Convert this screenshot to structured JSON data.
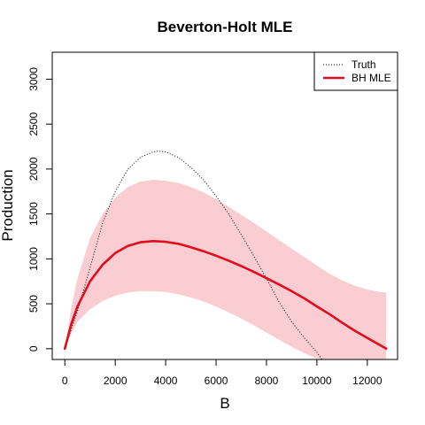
{
  "chart_data": {
    "type": "line",
    "title": "Beverton-Holt MLE",
    "xlabel": "B",
    "ylabel": "Production",
    "xlim": [
      -500,
      13200
    ],
    "ylim": [
      -120,
      3300
    ],
    "xticks": [
      0,
      2000,
      4000,
      6000,
      8000,
      10000,
      12000
    ],
    "yticks": [
      0,
      500,
      1000,
      1500,
      2000,
      2500,
      3000
    ],
    "grid": false,
    "legend_position": "top-right",
    "series": [
      {
        "name": "Truth",
        "style": "dotted",
        "color": "#000000",
        "x": [
          0,
          500,
          1000,
          1500,
          2000,
          2500,
          3000,
          3500,
          3700,
          4000,
          4500,
          5000,
          5500,
          6000,
          6500,
          7000,
          7500,
          8000,
          8500,
          9000,
          9500,
          10000,
          10200
        ],
        "y": [
          0,
          420,
          900,
          1400,
          1750,
          2000,
          2130,
          2190,
          2200,
          2190,
          2130,
          2020,
          1880,
          1700,
          1500,
          1270,
          1030,
          780,
          520,
          300,
          120,
          -40,
          -120
        ]
      },
      {
        "name": "BH MLE",
        "style": "solid",
        "color": "#e00d1d",
        "x": [
          0,
          250,
          500,
          1000,
          1500,
          2000,
          2500,
          3000,
          3500,
          4000,
          4500,
          5000,
          5500,
          6000,
          6500,
          7000,
          7500,
          8000,
          8500,
          9000,
          9500,
          10000,
          10500,
          11000,
          11500,
          12000,
          12500,
          12750
        ],
        "y": [
          0,
          270,
          470,
          750,
          935,
          1065,
          1145,
          1185,
          1198,
          1190,
          1168,
          1130,
          1085,
          1035,
          980,
          920,
          855,
          785,
          715,
          640,
          560,
          470,
          385,
          290,
          200,
          120,
          40,
          0
        ]
      }
    ],
    "confidence_band": {
      "color": "#f9cdd2",
      "x": [
        0,
        250,
        500,
        1000,
        1500,
        2000,
        2500,
        3000,
        3500,
        4000,
        4500,
        5000,
        5500,
        6000,
        6500,
        7000,
        7500,
        8000,
        8500,
        9000,
        9500,
        10000,
        10500,
        11000,
        11500,
        12000,
        12500,
        12750
      ],
      "upper": [
        0,
        450,
        780,
        1230,
        1500,
        1680,
        1800,
        1860,
        1880,
        1870,
        1845,
        1800,
        1740,
        1665,
        1580,
        1490,
        1400,
        1305,
        1210,
        1115,
        1020,
        925,
        835,
        760,
        700,
        660,
        630,
        625
      ],
      "lower": [
        0,
        170,
        300,
        440,
        530,
        590,
        625,
        640,
        640,
        630,
        605,
        570,
        525,
        470,
        405,
        335,
        260,
        180,
        100,
        20,
        -50,
        -110,
        -120,
        -120,
        -120,
        -120,
        -120,
        -120
      ]
    }
  }
}
